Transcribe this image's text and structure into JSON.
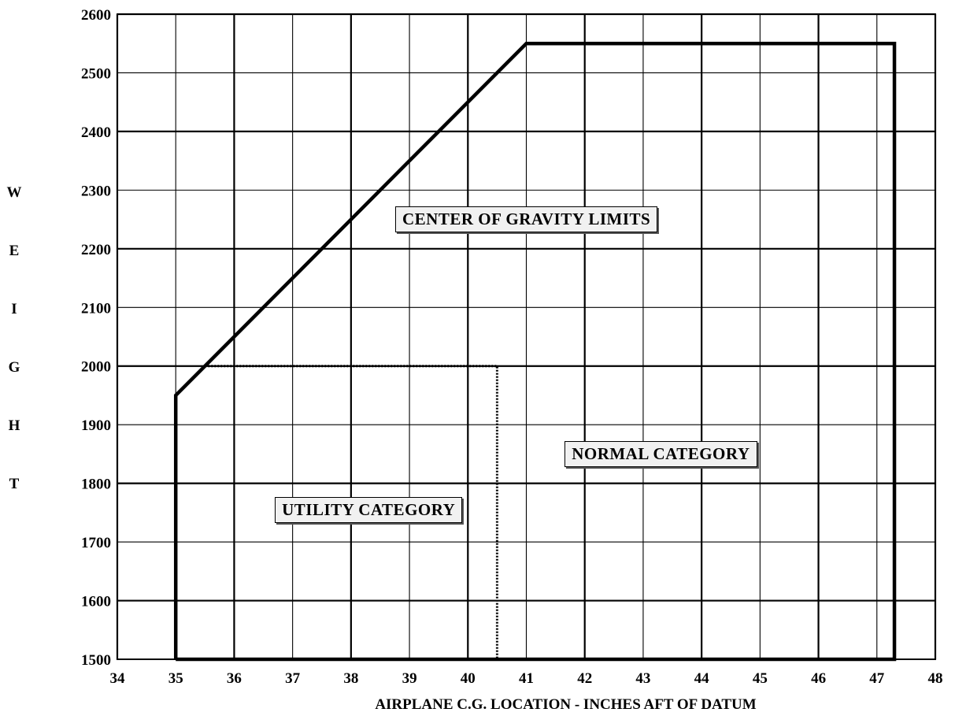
{
  "chart_data": {
    "type": "line",
    "title": "",
    "xlabel": "AIRPLANE C.G. LOCATION - INCHES AFT OF DATUM",
    "ylabel": "WEIGHT",
    "xlim": [
      34,
      48
    ],
    "ylim": [
      1500,
      2600
    ],
    "x_ticks": [
      34,
      35,
      36,
      37,
      38,
      39,
      40,
      41,
      42,
      43,
      44,
      45,
      46,
      47,
      48
    ],
    "y_ticks": [
      1500,
      1600,
      1700,
      1800,
      1900,
      2000,
      2100,
      2200,
      2300,
      2400,
      2500,
      2600
    ],
    "grid": true,
    "series": [
      {
        "name": "NORMAL CATEGORY",
        "style": "solid",
        "points": [
          [
            35.0,
            1500
          ],
          [
            35.0,
            1950
          ],
          [
            41.0,
            2550
          ],
          [
            47.3,
            2550
          ],
          [
            47.3,
            1500
          ],
          [
            35.0,
            1500
          ]
        ]
      },
      {
        "name": "UTILITY CATEGORY",
        "style": "dotted",
        "points": [
          [
            35.5,
            2000
          ],
          [
            40.5,
            2000
          ],
          [
            40.5,
            1500
          ]
        ]
      }
    ],
    "annotations": [
      {
        "text": "CENTER OF GRAVITY LIMITS",
        "x": 41.0,
        "y": 2250
      },
      {
        "text": "NORMAL CATEGORY",
        "x": 43.3,
        "y": 1850
      },
      {
        "text": "UTILITY CATEGORY",
        "x": 38.3,
        "y": 1755
      }
    ]
  }
}
